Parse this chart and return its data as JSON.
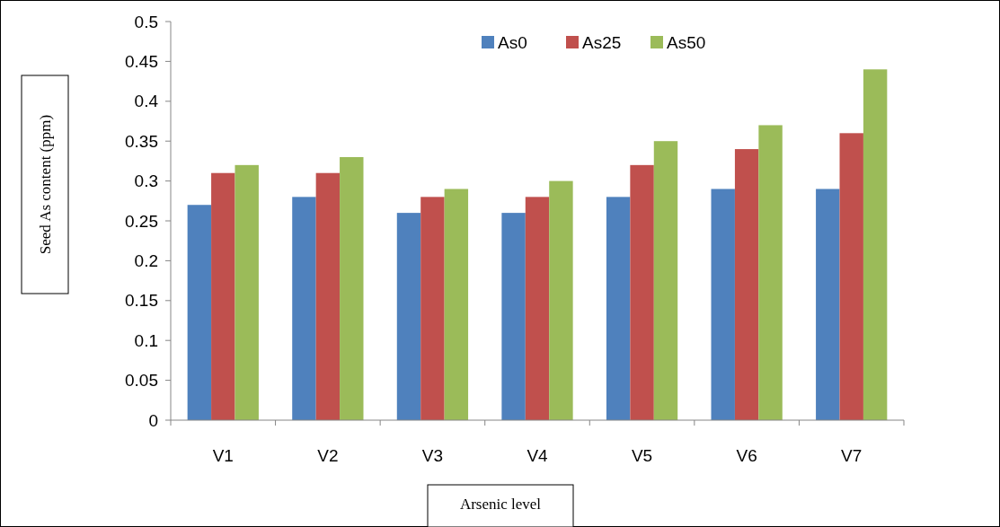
{
  "chart_data": {
    "type": "bar",
    "xlabel": "Arsenic level",
    "ylabel": "Seed As content (ppm)",
    "categories": [
      "V1",
      "V2",
      "V3",
      "V4",
      "V5",
      "V6",
      "V7"
    ],
    "series": [
      {
        "name": "As0",
        "color": "#4f81bd",
        "values": [
          0.27,
          0.28,
          0.26,
          0.26,
          0.28,
          0.29,
          0.29
        ]
      },
      {
        "name": "As25",
        "color": "#c0504d",
        "values": [
          0.31,
          0.31,
          0.28,
          0.28,
          0.32,
          0.34,
          0.36
        ]
      },
      {
        "name": "As50",
        "color": "#9bbb59",
        "values": [
          0.32,
          0.33,
          0.29,
          0.3,
          0.35,
          0.37,
          0.44
        ]
      }
    ],
    "ylim": [
      0,
      0.5
    ],
    "yticks": [
      0,
      0.05,
      0.1,
      0.15,
      0.2,
      0.25,
      0.3,
      0.35,
      0.4,
      0.45,
      0.5
    ],
    "grid": false,
    "legend": "top"
  }
}
